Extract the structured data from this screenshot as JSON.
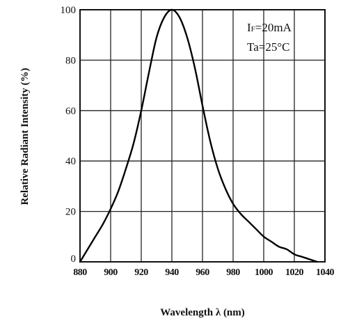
{
  "chart_data": {
    "type": "line",
    "xlabel": "Wavelength λ (nm)",
    "ylabel": "Relative Radiant Intensity (%)",
    "xlim": [
      880,
      1040
    ],
    "ylim": [
      0,
      100
    ],
    "x_ticks": [
      880,
      900,
      920,
      940,
      960,
      980,
      1000,
      1020,
      1040
    ],
    "y_ticks": [
      0,
      20,
      40,
      60,
      80,
      100
    ],
    "grid": true,
    "annotation": {
      "line1_main": "I",
      "line1_sub": "F",
      "line1_rest": "=20mA",
      "line2": "Ta=25°C"
    },
    "series": [
      {
        "x": [
          880,
          885,
          890,
          895,
          900,
          905,
          910,
          915,
          920,
          925,
          930,
          935,
          940,
          945,
          950,
          955,
          960,
          965,
          970,
          975,
          980,
          985,
          990,
          995,
          1000,
          1005,
          1010,
          1015,
          1020,
          1025,
          1030,
          1035
        ],
        "values": [
          0,
          5,
          10,
          15,
          21,
          28,
          37,
          47,
          60,
          75,
          89,
          97,
          100,
          97,
          89,
          77,
          62,
          48,
          37,
          29,
          23,
          19,
          16,
          13,
          10,
          8,
          6,
          5,
          3,
          2,
          1,
          0
        ]
      }
    ]
  }
}
